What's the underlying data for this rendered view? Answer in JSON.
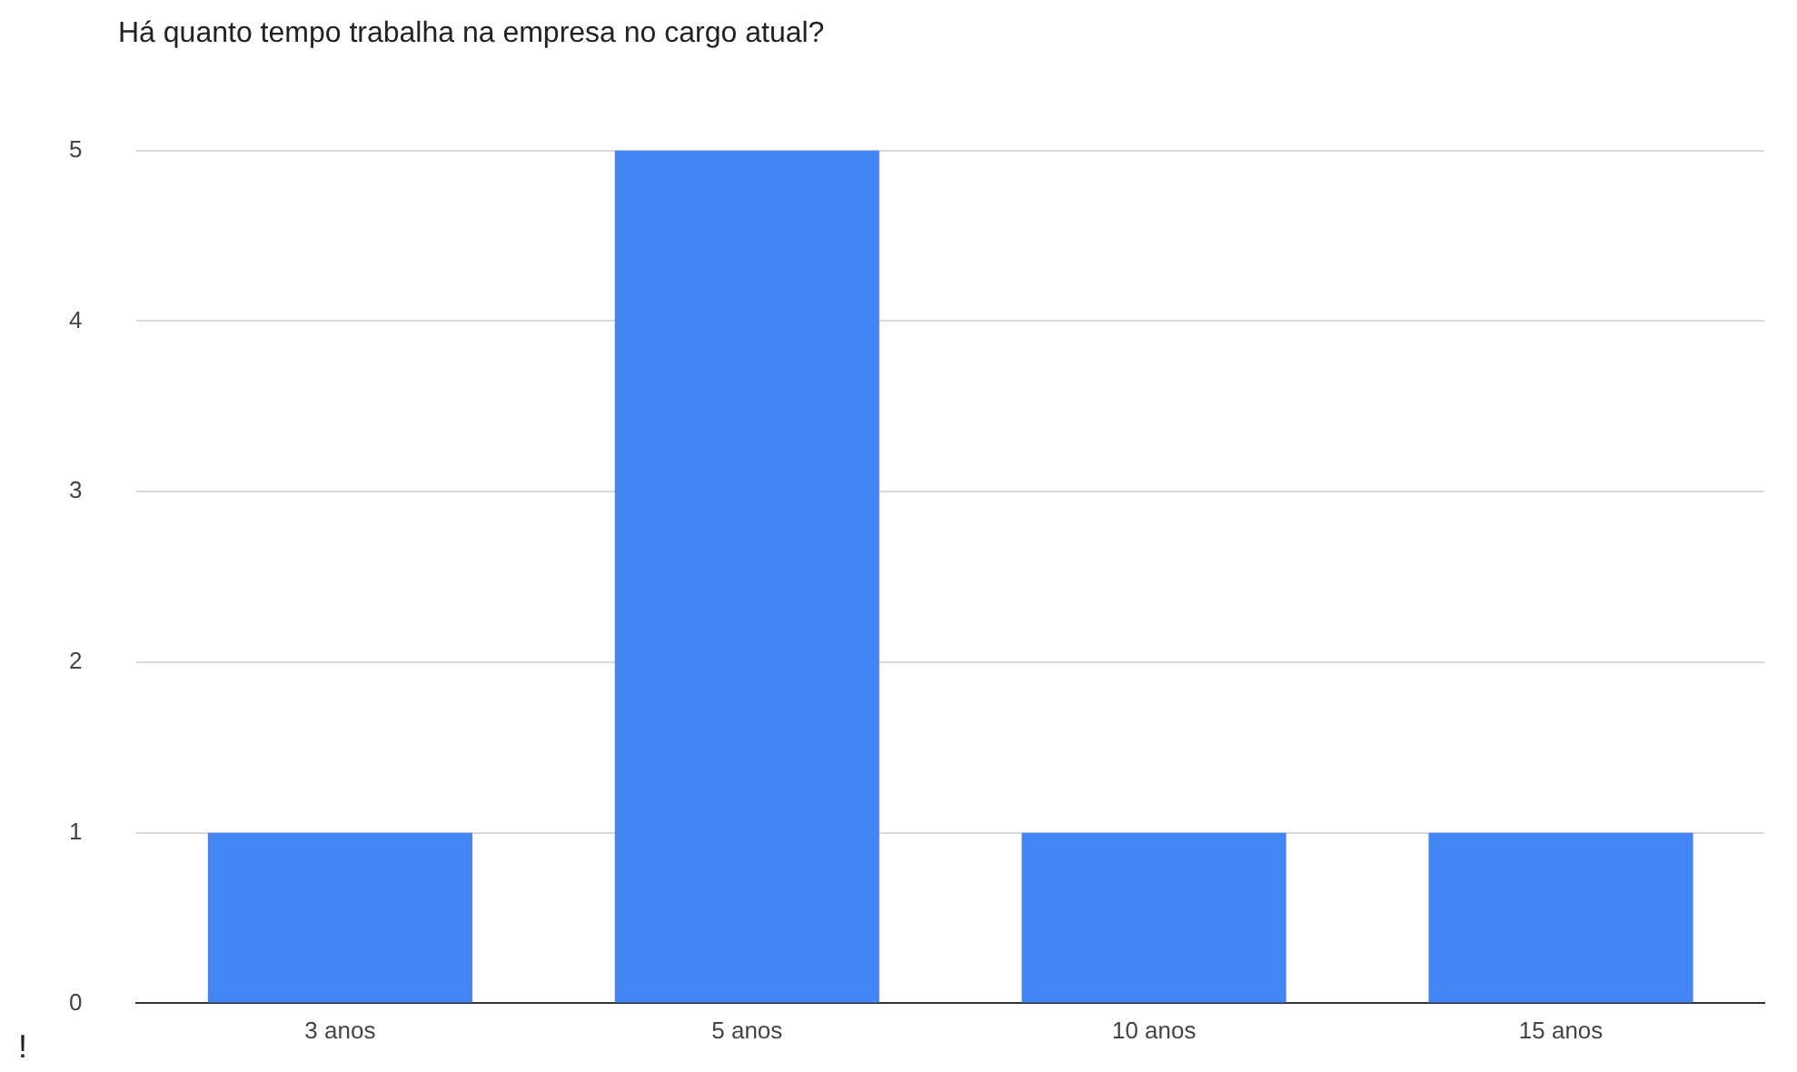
{
  "chart_data": {
    "type": "bar",
    "title": "Há quanto tempo trabalha na empresa no cargo atual?",
    "categories": [
      "3 anos",
      "5 anos",
      "10 anos",
      "15 anos"
    ],
    "values": [
      1,
      5,
      1,
      1
    ],
    "color": "#4285f4",
    "ylim": [
      0,
      5
    ],
    "yticks": [
      0,
      1,
      2,
      3,
      4,
      5
    ],
    "grid": "y",
    "annotations": [
      "!"
    ]
  }
}
